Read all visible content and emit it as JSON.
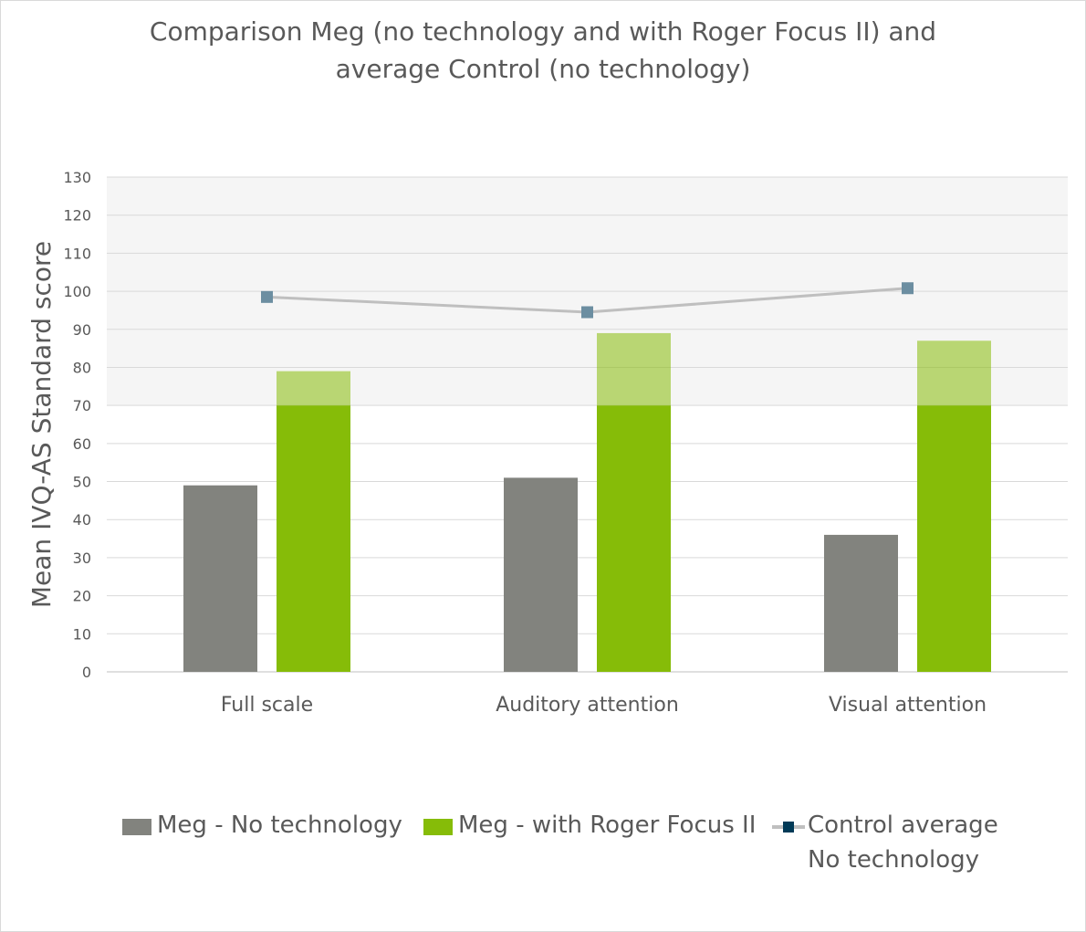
{
  "chart_data": {
    "type": "bar",
    "title_lines": [
      "Comparison Meg (no technology and with Roger Focus II) and",
      "average Control (no technology)"
    ],
    "ylabel": "Mean IVQ-AS Standard score",
    "xlabel": "",
    "categories": [
      "Full scale",
      "Auditory attention",
      "Visual attention"
    ],
    "ylim": [
      0,
      130
    ],
    "yticks": [
      0,
      10,
      20,
      30,
      40,
      50,
      60,
      70,
      80,
      90,
      100,
      110,
      120,
      130
    ],
    "grid": true,
    "shaded_band": [
      70,
      130
    ],
    "series": [
      {
        "name": "Meg - No technology",
        "kind": "bar",
        "color": "#82837e",
        "values": [
          49,
          51,
          36
        ]
      },
      {
        "name": "Meg - with Roger Focus II",
        "kind": "bar",
        "color": "#86bc08",
        "values": [
          79,
          89,
          87
        ]
      },
      {
        "name": "Control average\nNo technology",
        "kind": "line",
        "color": "#bfbfbf",
        "marker_color": "#6c8ea1",
        "values": [
          98.5,
          94.5,
          100.8
        ]
      }
    ],
    "legend_position": "bottom"
  },
  "legend": {
    "item1": "Meg - No technology",
    "item2": "Meg - with Roger Focus II",
    "item3_line1": "Control average",
    "item3_line2": "No technology",
    "item1_color": "#82837e",
    "item2_color": "#86bc08"
  }
}
